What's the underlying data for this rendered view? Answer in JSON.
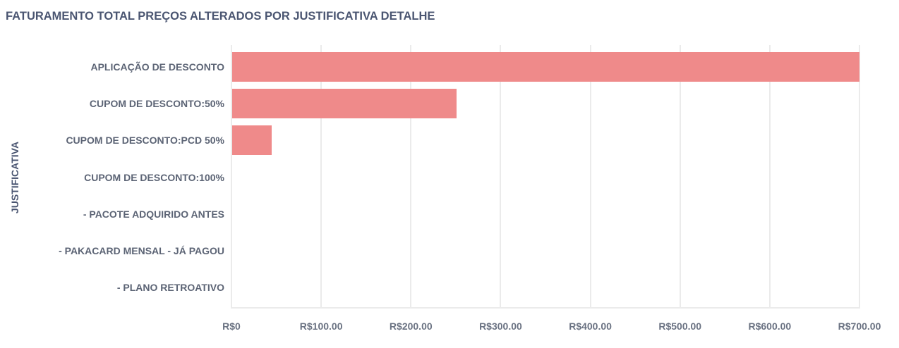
{
  "chart_data": {
    "type": "bar",
    "orientation": "horizontal",
    "title": "FATURAMENTO TOTAL PREÇOS ALTERADOS POR JUSTIFICATIVA DETALHE",
    "xlabel": "",
    "ylabel": "JUSTIFICATIVA",
    "categories": [
      "APLICAÇÃO DE DESCONTO",
      "CUPOM DE DESCONTO:50%",
      "CUPOM DE DESCONTO:PCD 50%",
      "CUPOM DE DESCONTO:100%",
      "- PACOTE ADQUIRIDO ANTES",
      "- PAKACARD MENSAL - JÁ PAGOU",
      "- PLANO RETROATIVO"
    ],
    "values": [
      700,
      251,
      45,
      0,
      0,
      0,
      0
    ],
    "xlim": [
      0,
      700
    ],
    "x_ticks": [
      "R$0",
      "R$100.00",
      "R$200.00",
      "R$300.00",
      "R$400.00",
      "R$500.00",
      "R$600.00",
      "R$700.00"
    ],
    "grid": true,
    "legend": "none",
    "bar_color": "#ef8a8a"
  }
}
